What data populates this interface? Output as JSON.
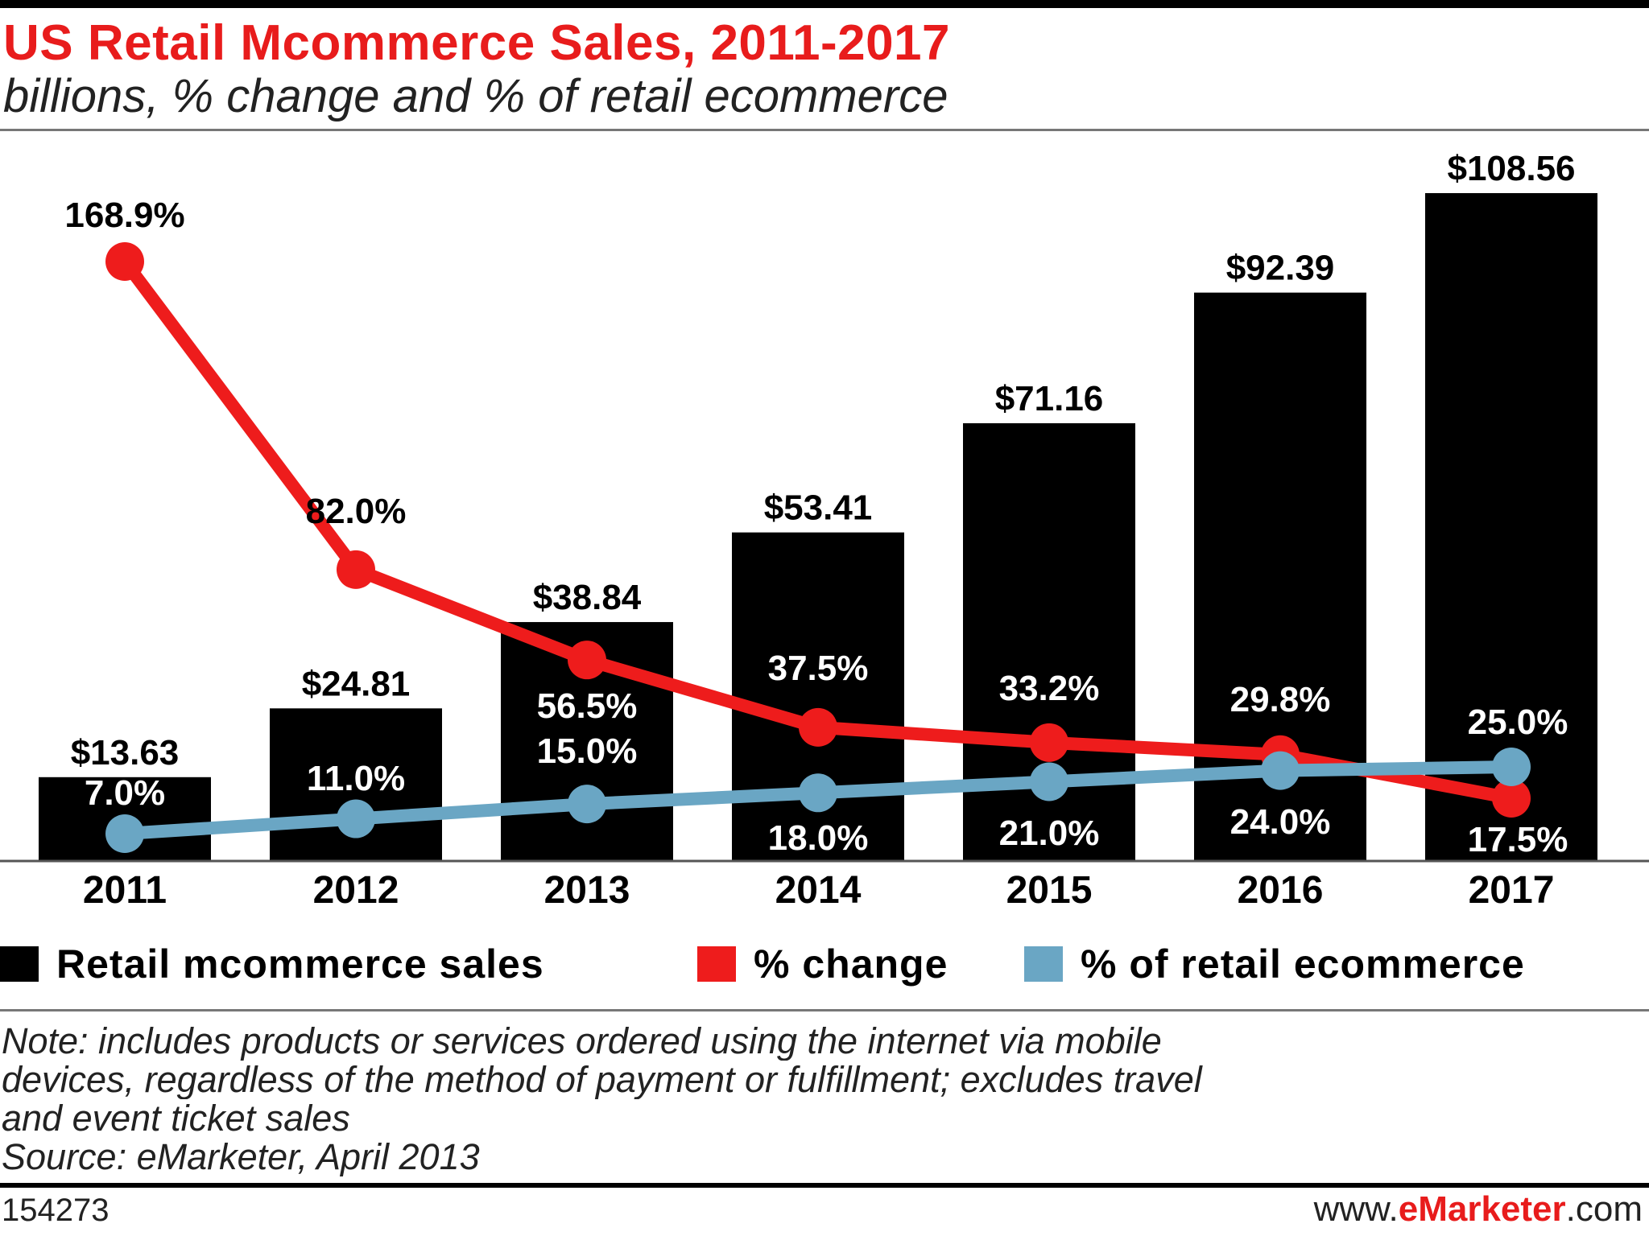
{
  "colors": {
    "bar": "#000000",
    "change": "#ee1c1c",
    "share": "#6aa6c4",
    "title": "#e81c1c"
  },
  "chart_data": {
    "type": "bar",
    "title": "US Retail Mcommerce Sales, 2011-2017",
    "subtitle": "billions, % change and % of retail ecommerce",
    "categories": [
      "2011",
      "2012",
      "2013",
      "2014",
      "2015",
      "2016",
      "2017"
    ],
    "series": [
      {
        "name": "Retail mcommerce sales",
        "type": "bar",
        "values": [
          13.63,
          24.81,
          38.84,
          53.41,
          71.16,
          92.39,
          108.56
        ],
        "labels": [
          "$13.63",
          "$24.81",
          "$38.84",
          "$53.41",
          "$71.16",
          "$92.39",
          "$108.56"
        ]
      },
      {
        "name": "% change",
        "type": "line",
        "values": [
          168.9,
          82.0,
          56.5,
          37.5,
          33.2,
          29.8,
          17.5
        ],
        "labels": [
          "168.9%",
          "82.0%",
          "56.5%",
          "37.5%",
          "33.2%",
          "29.8%",
          "17.5%"
        ]
      },
      {
        "name": "% of retail ecommerce",
        "type": "line",
        "values": [
          7.0,
          11.0,
          15.0,
          18.0,
          21.0,
          24.0,
          25.0
        ],
        "labels": [
          "7.0%",
          "11.0%",
          "15.0%",
          "18.0%",
          "21.0%",
          "24.0%",
          "25.0%"
        ]
      }
    ],
    "legend": [
      "Retail mcommerce sales",
      "% change",
      "% of retail ecommerce"
    ],
    "legend_position": "bottom",
    "grid": false
  },
  "note_lines": [
    "Note: includes products or services ordered using the internet via mobile",
    "devices, regardless of the method of payment or fulfillment; excludes travel",
    "and event ticket sales",
    "Source: eMarketer, April 2013"
  ],
  "footer": {
    "id": "154273",
    "site_prefix": "www.",
    "site_brand": "eMarketer",
    "site_suffix": ".com"
  }
}
